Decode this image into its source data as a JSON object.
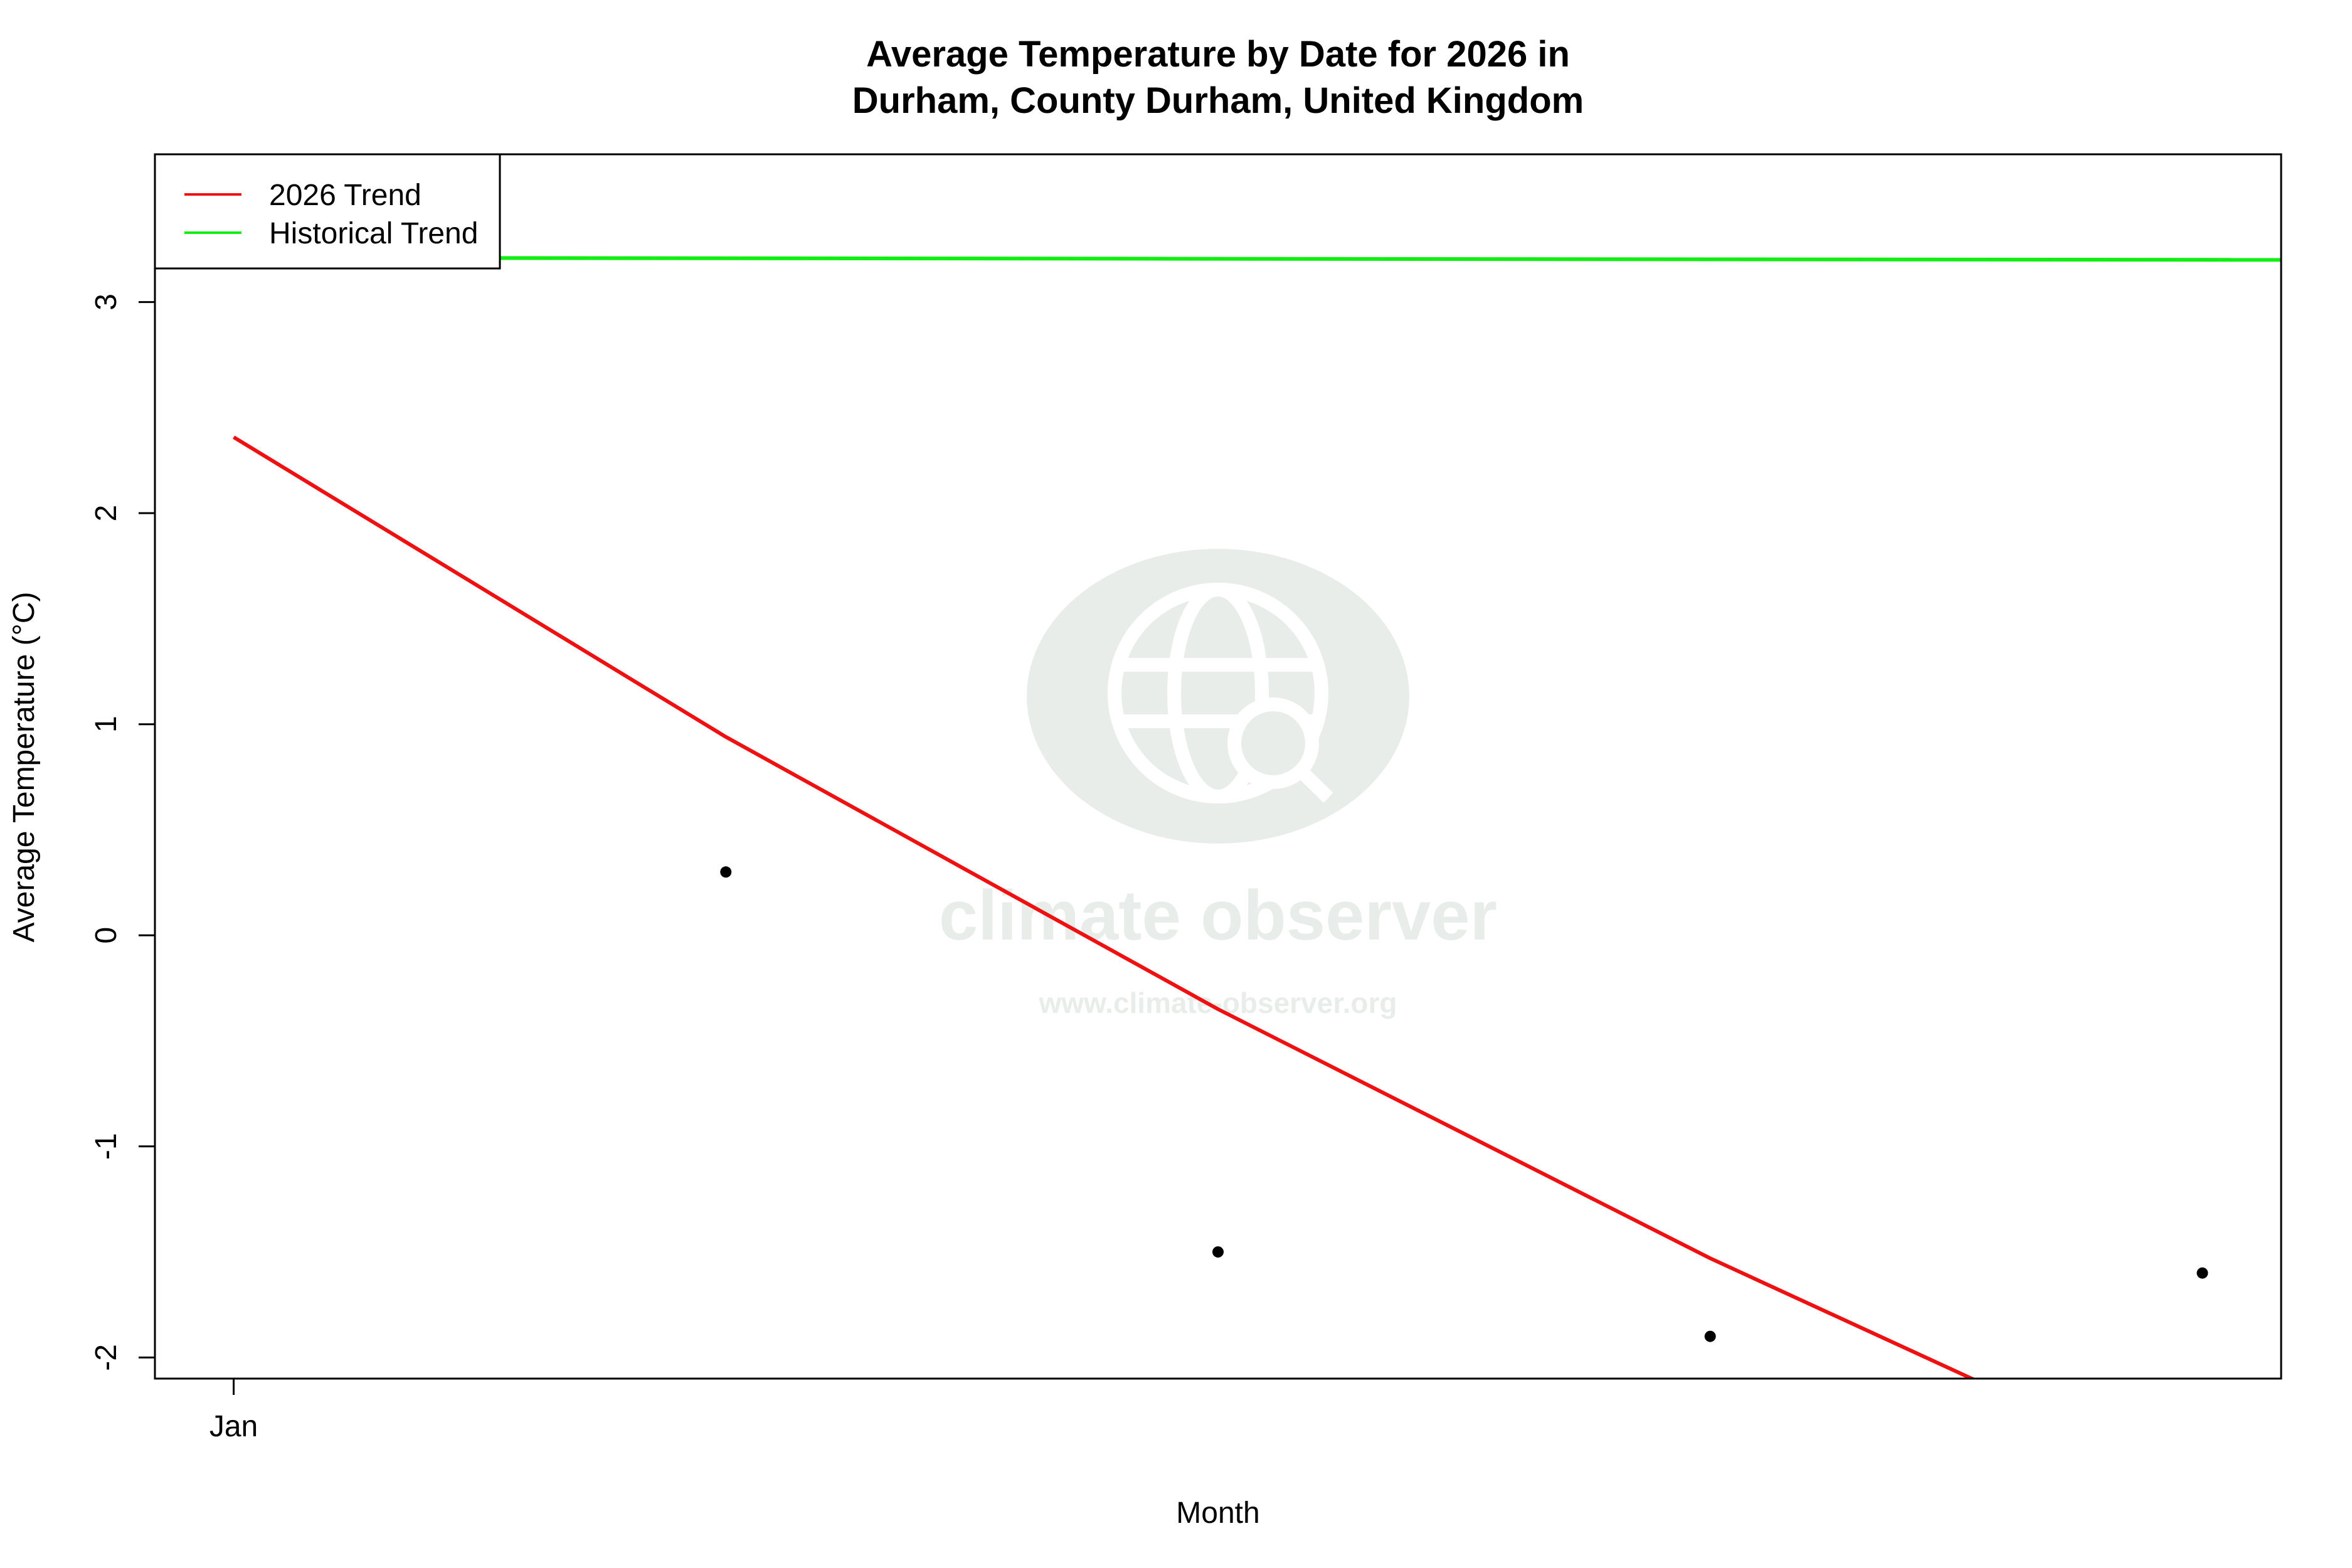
{
  "chart_data": {
    "type": "line",
    "title": "Average Temperature by Date for 2026 in",
    "subtitle": "Durham, County Durham, United Kingdom",
    "xlabel": "Month",
    "ylabel": "Average Temperature (°C)",
    "x_ticks": [
      {
        "x": 1,
        "label": "Jan"
      }
    ],
    "y_ticks": [
      -2,
      -1,
      0,
      1,
      2,
      3
    ],
    "ylim": [
      -2.1,
      3.7
    ],
    "xlim": [
      0.84,
      5.16
    ],
    "points": [
      {
        "x": 2,
        "y": 0.3
      },
      {
        "x": 3,
        "y": -1.5
      },
      {
        "x": 4,
        "y": -1.9
      },
      {
        "x": 5,
        "y": -1.6
      }
    ],
    "series": [
      {
        "name": "2026 Trend",
        "color": "#ee1111",
        "x": [
          1,
          2,
          3,
          4,
          4.55
        ],
        "y": [
          2.36,
          0.94,
          -0.35,
          -1.53,
          -2.12
        ]
      },
      {
        "name": "Historical Trend",
        "color": "#11ee11",
        "x": [
          0.84,
          5.16
        ],
        "y": [
          3.21,
          3.2
        ]
      }
    ],
    "legend": {
      "placement": "top-left",
      "entries": [
        "2026 Trend",
        "Historical Trend"
      ]
    },
    "grid": false
  },
  "watermark": {
    "brand": "climate observer",
    "url": "www.climate-observer.org",
    "icon": "globe-search-icon",
    "color": "#e9ede9"
  }
}
